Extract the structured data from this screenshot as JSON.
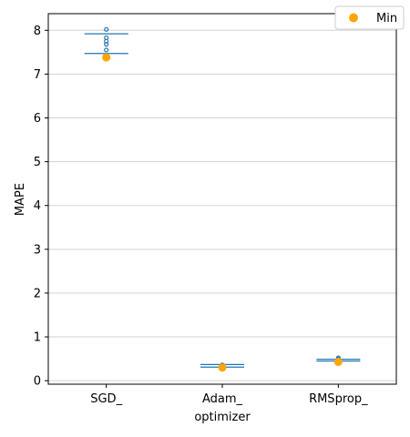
{
  "chart_data": {
    "type": "scatter",
    "xlabel": "optimizer",
    "ylabel": "MAPE",
    "categories": [
      "SGD_",
      "Adam_",
      "RMSprop_"
    ],
    "ylim": [
      -0.08,
      8.38
    ],
    "yticks": [
      0,
      1,
      2,
      3,
      4,
      5,
      6,
      7,
      8
    ],
    "grid": "horizontal",
    "legend": {
      "placement": "top-right",
      "entries": [
        "Min"
      ]
    },
    "colors": {
      "box": "#1f77b4",
      "min": "#ffa500",
      "grid": "#d3d3d3"
    },
    "groups": [
      {
        "category": "SGD_",
        "whisker_low": 7.47,
        "whisker_high": 7.92,
        "points": [
          7.55,
          7.68,
          7.75,
          7.83,
          8.02
        ],
        "min": 7.38
      },
      {
        "category": "Adam_",
        "whisker_low": 0.31,
        "whisker_high": 0.37,
        "points": [
          0.34,
          0.36
        ],
        "min": 0.3
      },
      {
        "category": "RMSprop_",
        "whisker_low": 0.45,
        "whisker_high": 0.49,
        "points": [
          0.47,
          0.5,
          0.52
        ],
        "min": 0.43
      }
    ]
  }
}
